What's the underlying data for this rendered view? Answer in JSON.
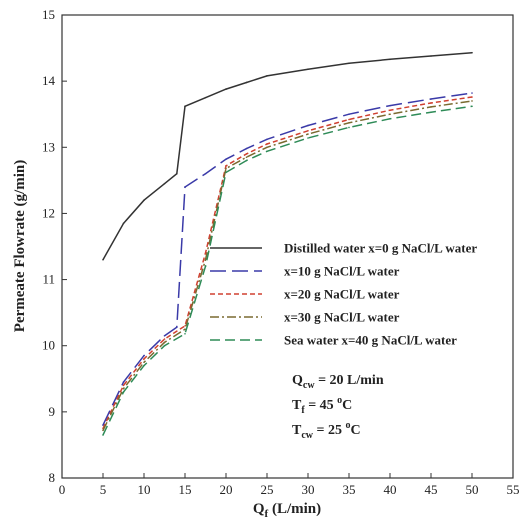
{
  "chart_data": {
    "type": "line",
    "xlabel": "Q",
    "xlabel_sub": "f",
    "xlabel_unit": " (L/min)",
    "ylabel": "Permeate Flowrate (g/min)",
    "xlim": [
      0,
      55
    ],
    "ylim": [
      8,
      15
    ],
    "xticks": [
      0,
      5,
      10,
      15,
      20,
      25,
      30,
      35,
      40,
      45,
      50,
      55
    ],
    "yticks": [
      8,
      9,
      10,
      11,
      12,
      13,
      14,
      15
    ],
    "grid": false,
    "legend_position": "center-right",
    "series": [
      {
        "name": "Distilled water x=0 g NaCl/L water",
        "color": "#333333",
        "dash": "solid",
        "x": [
          5,
          7.5,
          10,
          12.5,
          14,
          15,
          17.5,
          20,
          22.5,
          25,
          30,
          35,
          40,
          45,
          50
        ],
        "y": [
          11.3,
          11.85,
          12.2,
          12.45,
          12.6,
          13.62,
          13.75,
          13.88,
          13.98,
          14.08,
          14.18,
          14.27,
          14.33,
          14.38,
          14.43
        ]
      },
      {
        "name": "x=10 g NaCl/L water",
        "color": "#3a3aa8",
        "dash": "longdash",
        "x": [
          5,
          7.5,
          10,
          12.5,
          14,
          15,
          17.5,
          20,
          22.5,
          25,
          30,
          35,
          40,
          45,
          50
        ],
        "y": [
          8.8,
          9.45,
          9.85,
          10.15,
          10.28,
          12.4,
          12.6,
          12.82,
          12.98,
          13.12,
          13.33,
          13.5,
          13.63,
          13.73,
          13.82
        ]
      },
      {
        "name": "x=20 g NaCl/L water",
        "color": "#d04030",
        "dash": "shortdash",
        "x": [
          5,
          7.5,
          10,
          12.5,
          15,
          17.5,
          20,
          22.5,
          25,
          30,
          35,
          40,
          45,
          50
        ],
        "y": [
          8.75,
          9.4,
          9.8,
          10.1,
          10.3,
          11.4,
          12.72,
          12.9,
          13.05,
          13.25,
          13.42,
          13.56,
          13.67,
          13.76
        ]
      },
      {
        "name": "x=30 g NaCl/L water",
        "color": "#7a6a30",
        "dash": "dashdot",
        "x": [
          5,
          7.5,
          10,
          12.5,
          15,
          17.5,
          20,
          22.5,
          25,
          30,
          35,
          40,
          45,
          50
        ],
        "y": [
          8.72,
          9.35,
          9.75,
          10.05,
          10.25,
          11.3,
          12.68,
          12.85,
          13.0,
          13.2,
          13.37,
          13.5,
          13.61,
          13.7
        ]
      },
      {
        "name": "Sea water x=40 g NaCl/L water",
        "color": "#2e8b57",
        "dash": "dashed",
        "x": [
          5,
          7.5,
          10,
          12.5,
          15,
          17.5,
          20,
          22.5,
          25,
          30,
          35,
          40,
          45,
          50
        ],
        "y": [
          8.65,
          9.3,
          9.7,
          10.0,
          10.18,
          11.2,
          12.62,
          12.8,
          12.94,
          13.14,
          13.3,
          13.43,
          13.53,
          13.62
        ]
      }
    ],
    "annotations": [
      {
        "base": "Q",
        "sub": "cw",
        "sup": "",
        "text": " = 20 L/min",
        "text2": ""
      },
      {
        "base": "T",
        "sub": "f",
        "sup": "o",
        "text": " = 45 ",
        "text2": "C"
      },
      {
        "base": "T",
        "sub": "cw",
        "sup": "o",
        "text": " = 25 ",
        "text2": "C"
      }
    ]
  }
}
